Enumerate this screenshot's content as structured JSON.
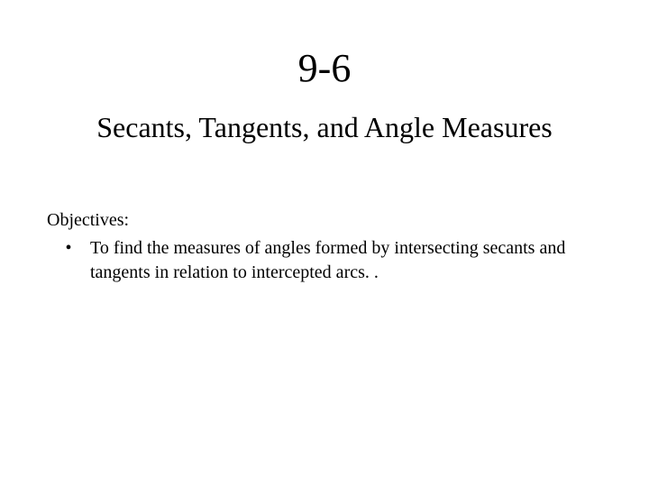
{
  "slide": {
    "title_number": "9-6",
    "title_text": "Secants, Tangents, and Angle Measures",
    "objectives_heading": "Objectives:",
    "objectives": [
      {
        "bullet": "•",
        "text": "To find the measures of angles formed by intersecting secants and tangents in relation to intercepted arcs. ."
      }
    ],
    "colors": {
      "background": "#ffffff",
      "text": "#000000"
    },
    "typography": {
      "font_family": "Times New Roman",
      "title_number_fontsize": 44,
      "title_text_fontsize": 32,
      "body_fontsize": 20
    }
  }
}
